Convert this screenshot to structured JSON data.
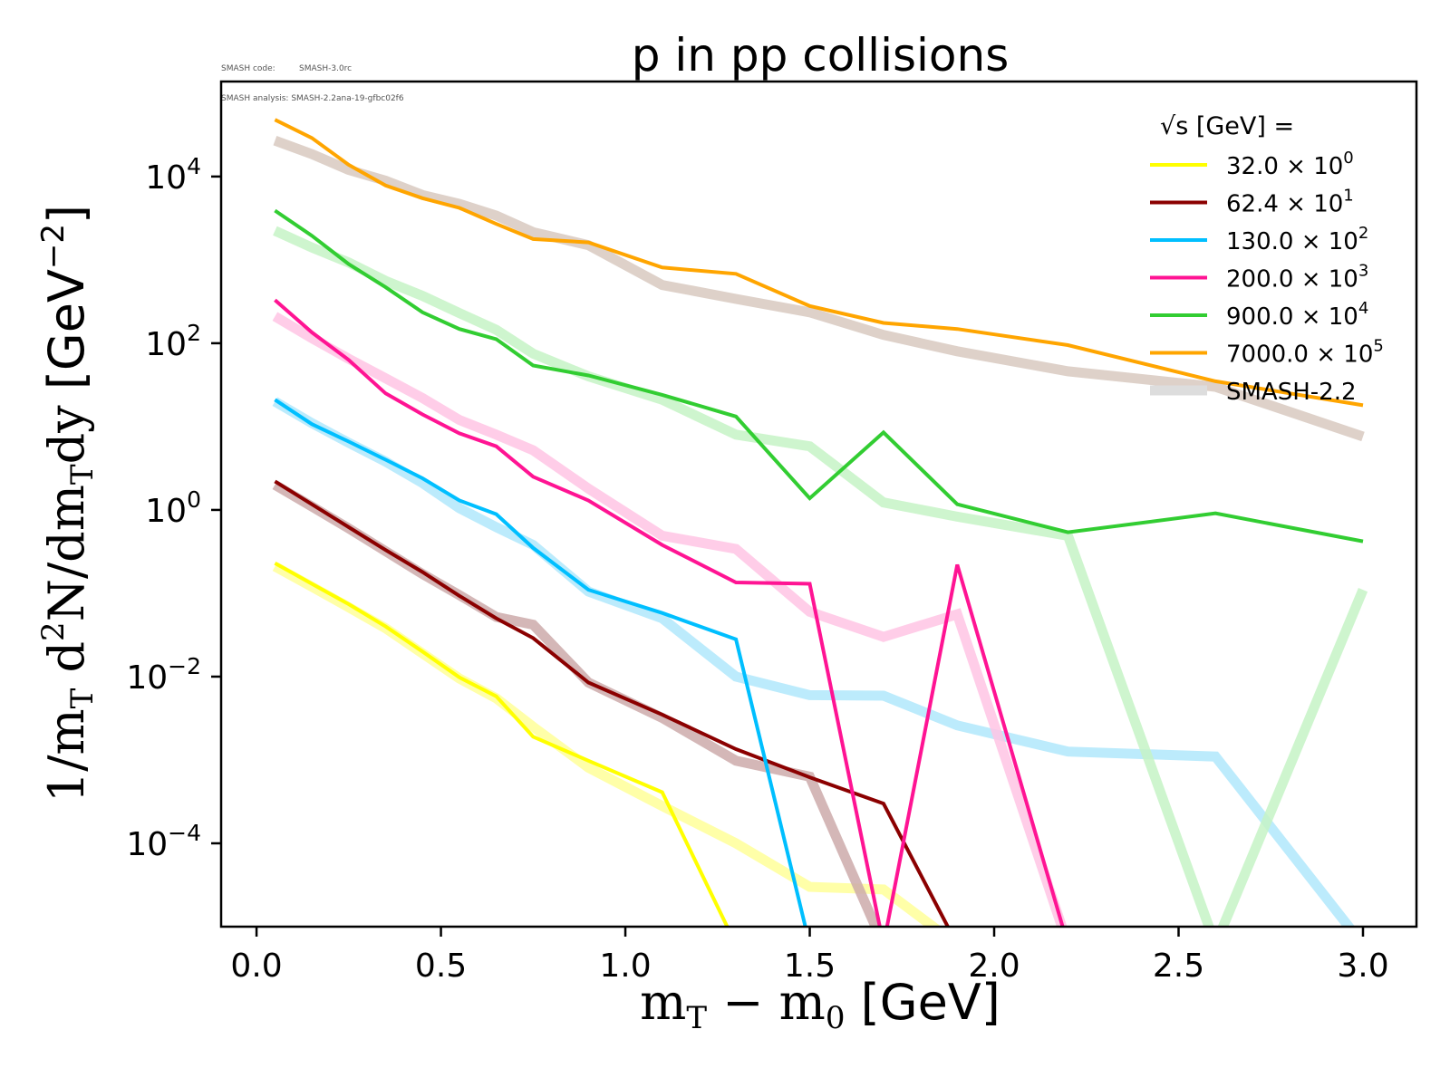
{
  "meta": {
    "code_label": "SMASH code:",
    "code_value": "SMASH-3.0rc",
    "analysis_label": "SMASH analysis:",
    "analysis_value": "SMASH-2.2ana-19-gfbc02f6"
  },
  "chart_data": {
    "type": "line",
    "title": "p in pp collisions",
    "xlabel_main": "m",
    "xlabel": "m_T - m_0 [GeV]",
    "ylabel": "1/m_T d^2N/dm_T dy [GeV^-2]",
    "xscale": "linear",
    "yscale": "log",
    "xlim": [
      -0.096,
      3.145
    ],
    "ylim": [
      1e-05,
      138000.0
    ],
    "xticks": [
      0.0,
      0.5,
      1.0,
      1.5,
      2.0,
      2.5,
      3.0
    ],
    "xtick_labels": [
      "0.0",
      "0.5",
      "1.0",
      "1.5",
      "2.0",
      "2.5",
      "3.0"
    ],
    "yticks": [
      10000.0,
      100.0,
      1.0,
      0.01,
      0.0001
    ],
    "ytick_labels": [
      {
        "base": "10",
        "exp": "4"
      },
      {
        "base": "10",
        "exp": "2"
      },
      {
        "base": "10",
        "exp": "0"
      },
      {
        "base": "10",
        "exp": "−2"
      },
      {
        "base": "10",
        "exp": "−4"
      }
    ],
    "grid": false,
    "legend_position": "top-right",
    "legend_title": "√s [GeV] =",
    "x": [
      0.05,
      0.15,
      0.25,
      0.35,
      0.45,
      0.55,
      0.65,
      0.75,
      0.9,
      1.1,
      1.3,
      1.5,
      1.7,
      1.9,
      2.2,
      2.6,
      3.0
    ],
    "series": [
      {
        "name": "32.0 × 10^0",
        "label_base": "32.0 × 10",
        "label_exp": "0",
        "color": "#ffff00",
        "kind": "data",
        "values": [
          0.23,
          0.13,
          0.074,
          0.04,
          0.02,
          0.0098,
          0.0058,
          0.0019,
          0.00098,
          0.00041,
          0,
          0,
          0,
          0,
          0,
          0,
          0
        ]
      },
      {
        "name": "62.4 × 10^1",
        "label_base": "62.4 × 10",
        "label_exp": "1",
        "color": "#8b0000",
        "kind": "data",
        "values": [
          2.2,
          1.17,
          0.62,
          0.33,
          0.18,
          0.093,
          0.05,
          0.029,
          0.0085,
          0.0035,
          0.00135,
          0.00062,
          0.0003,
          0,
          0,
          0,
          0
        ]
      },
      {
        "name": "130.0 × 10^2",
        "label_base": "130.0 × 10",
        "label_exp": "2",
        "color": "#00bfff",
        "kind": "data",
        "values": [
          21,
          10.7,
          6.6,
          4.0,
          2.4,
          1.3,
          0.89,
          0.35,
          0.11,
          0.058,
          0.028,
          0,
          0,
          0,
          0,
          0,
          0
        ]
      },
      {
        "name": "200.0 × 10^3",
        "label_base": "200.0 × 10",
        "label_exp": "3",
        "color": "#ff1493",
        "kind": "data",
        "values": [
          330,
          135,
          63,
          25,
          14,
          8.3,
          5.8,
          2.5,
          1.3,
          0.38,
          0.135,
          0.13,
          0,
          0.22,
          0,
          0,
          0
        ]
      },
      {
        "name": "900.0 × 10^4",
        "label_base": "900.0 × 10",
        "label_exp": "4",
        "color": "#32cd32",
        "kind": "data",
        "values": [
          3900,
          1950,
          890,
          470,
          235,
          148,
          112,
          54,
          41,
          24,
          13.2,
          1.38,
          8.5,
          1.17,
          0.54,
          0.91,
          0.42
        ]
      },
      {
        "name": "7000.0 × 10^5",
        "label_base": "7000.0 × 10",
        "label_exp": "5",
        "color": "#ffa500",
        "kind": "data",
        "values": [
          48000,
          29000,
          13800,
          7800,
          5500,
          4200,
          2700,
          1780,
          1620,
          810,
          680,
          280,
          175,
          148,
          95,
          35,
          18
        ]
      },
      {
        "name": "SMASH-2.2 (32.0)",
        "color": "#ffff99",
        "kind": "smash",
        "values": [
          0.21,
          0.12,
          0.068,
          0.038,
          0.019,
          0.0095,
          0.0055,
          0.0025,
          0.00081,
          0.00028,
          0.0001,
          3e-05,
          2.8e-05,
          0,
          0,
          0,
          0
        ]
      },
      {
        "name": "SMASH-2.2 (62.4)",
        "color": "#ccaaaa",
        "kind": "smash",
        "values": [
          2.0,
          1.1,
          0.6,
          0.32,
          0.17,
          0.095,
          0.052,
          0.042,
          0.0085,
          0.0032,
          0.00098,
          0.00063,
          0,
          0,
          0,
          0,
          0
        ]
      },
      {
        "name": "SMASH-2.2 (130.0)",
        "color": "#b0e8fb",
        "kind": "smash",
        "values": [
          20,
          11,
          6.4,
          3.8,
          2.1,
          1.05,
          0.62,
          0.38,
          0.105,
          0.05,
          0.01,
          0.006,
          0.0059,
          0.0026,
          0.00126,
          0.0011,
          0
        ]
      },
      {
        "name": "SMASH-2.2 (200.0)",
        "color": "#ffc4e4",
        "kind": "smash",
        "values": [
          210,
          115,
          65,
          38,
          22,
          12,
          8.0,
          5.2,
          1.8,
          0.49,
          0.34,
          0.06,
          0.03,
          0.056,
          0,
          0,
          0
        ]
      },
      {
        "name": "SMASH-2.2 (900.0)",
        "color": "#c6f3c6",
        "kind": "smash",
        "values": [
          2240,
          1410,
          930,
          560,
          370,
          230,
          145,
          75,
          40,
          21,
          8.0,
          5.8,
          1.23,
          0.83,
          0.49,
          0,
          0.11
        ]
      },
      {
        "name": "SMASH-2.2 (7000.0)",
        "color": "#d8c9c0",
        "kind": "smash",
        "values": [
          27000,
          18600,
          12000,
          8900,
          6000,
          4700,
          3400,
          2150,
          1500,
          500,
          340,
          235,
          126,
          80,
          46,
          30,
          7.6
        ]
      }
    ],
    "legend_entries": [
      {
        "label_base": "32.0 × 10",
        "label_exp": "0",
        "color": "#ffff00"
      },
      {
        "label_base": "62.4 × 10",
        "label_exp": "1",
        "color": "#8b0000"
      },
      {
        "label_base": "130.0 × 10",
        "label_exp": "2",
        "color": "#00bfff"
      },
      {
        "label_base": "200.0 × 10",
        "label_exp": "3",
        "color": "#ff1493"
      },
      {
        "label_base": "900.0 × 10",
        "label_exp": "4",
        "color": "#32cd32"
      },
      {
        "label_base": "7000.0 × 10",
        "label_exp": "5",
        "color": "#ffa500"
      },
      {
        "label_base": "SMASH-2.2",
        "label_exp": "",
        "color": "#dddddd"
      }
    ]
  }
}
